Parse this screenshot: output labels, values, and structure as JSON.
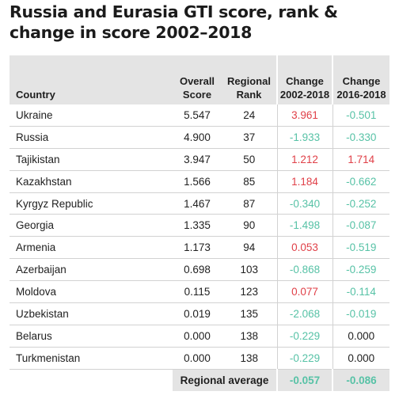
{
  "title": "Russia and Eurasia GTI score, rank & change in score 2002–2018",
  "colors": {
    "increase": "#e04048",
    "decrease": "#57c2a6",
    "header_bg": "#e4e4e4"
  },
  "headers": {
    "country": "Country",
    "overall": "Overall Score",
    "rank": "Regional Rank",
    "change_2002": "Change 2002-2018",
    "change_2016": "Change 2016-2018"
  },
  "average": {
    "label": "Regional average",
    "change_2002": "-0.057",
    "change_2016": "-0.086"
  },
  "chart_data": {
    "type": "table",
    "title": "Russia and Eurasia GTI score, rank & change in score 2002–2018",
    "columns": [
      "Country",
      "Overall Score",
      "Regional Rank",
      "Change 2002-2018",
      "Change 2016-2018"
    ],
    "rows": [
      {
        "country": "Ukraine",
        "score": "5.547",
        "rank": "24",
        "change_2002": "3.961",
        "change_2016": "-0.501"
      },
      {
        "country": "Russia",
        "score": "4.900",
        "rank": "37",
        "change_2002": "-1.933",
        "change_2016": "-0.330"
      },
      {
        "country": "Tajikistan",
        "score": "3.947",
        "rank": "50",
        "change_2002": "1.212",
        "change_2016": "1.714"
      },
      {
        "country": "Kazakhstan",
        "score": "1.566",
        "rank": "85",
        "change_2002": "1.184",
        "change_2016": "-0.662"
      },
      {
        "country": "Kyrgyz Republic",
        "score": "1.467",
        "rank": "87",
        "change_2002": "-0.340",
        "change_2016": "-0.252"
      },
      {
        "country": "Georgia",
        "score": "1.335",
        "rank": "90",
        "change_2002": "-1.498",
        "change_2016": "-0.087"
      },
      {
        "country": "Armenia",
        "score": "1.173",
        "rank": "94",
        "change_2002": "0.053",
        "change_2016": "-0.519"
      },
      {
        "country": "Azerbaijan",
        "score": "0.698",
        "rank": "103",
        "change_2002": "-0.868",
        "change_2016": "-0.259"
      },
      {
        "country": "Moldova",
        "score": "0.115",
        "rank": "123",
        "change_2002": "0.077",
        "change_2016": "-0.114"
      },
      {
        "country": "Uzbekistan",
        "score": "0.019",
        "rank": "135",
        "change_2002": "-2.068",
        "change_2016": "-0.019"
      },
      {
        "country": "Belarus",
        "score": "0.000",
        "rank": "138",
        "change_2002": "-0.229",
        "change_2016": "0.000"
      },
      {
        "country": "Turkmenistan",
        "score": "0.000",
        "rank": "138",
        "change_2002": "-0.229",
        "change_2016": "0.000"
      }
    ]
  }
}
